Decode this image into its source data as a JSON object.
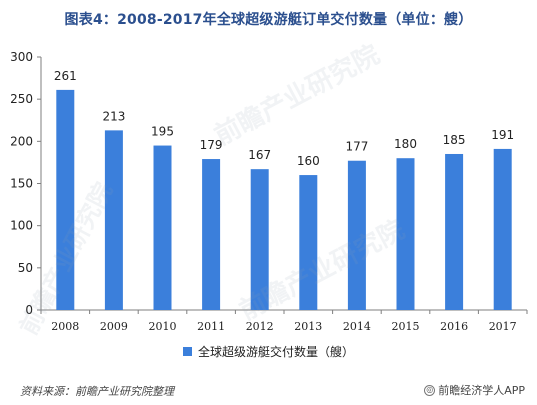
{
  "chart_data": {
    "type": "bar",
    "title": "图表4：2008-2017年全球超级游艇订单交付数量（单位：艘）",
    "categories": [
      "2008",
      "2009",
      "2010",
      "2011",
      "2012",
      "2013",
      "2014",
      "2015",
      "2016",
      "2017"
    ],
    "series": [
      {
        "name": "全球超级游艇交付数量（艘）",
        "values": [
          261,
          213,
          195,
          179,
          167,
          160,
          177,
          180,
          185,
          191
        ]
      }
    ],
    "xlabel": "",
    "ylabel": "",
    "ylim": [
      0,
      300
    ],
    "yticks": [
      0,
      50,
      100,
      150,
      200,
      250,
      300
    ],
    "grid": false,
    "legend": "bottom-center",
    "bar_color": "#3b7fdb",
    "axis_color": "#7f7f7f"
  },
  "footer": {
    "source": "资料来源：前瞻产业研究院整理",
    "brand": "前瞻经济学人APP"
  },
  "watermark": {
    "text": "前瞻产业研究院"
  }
}
